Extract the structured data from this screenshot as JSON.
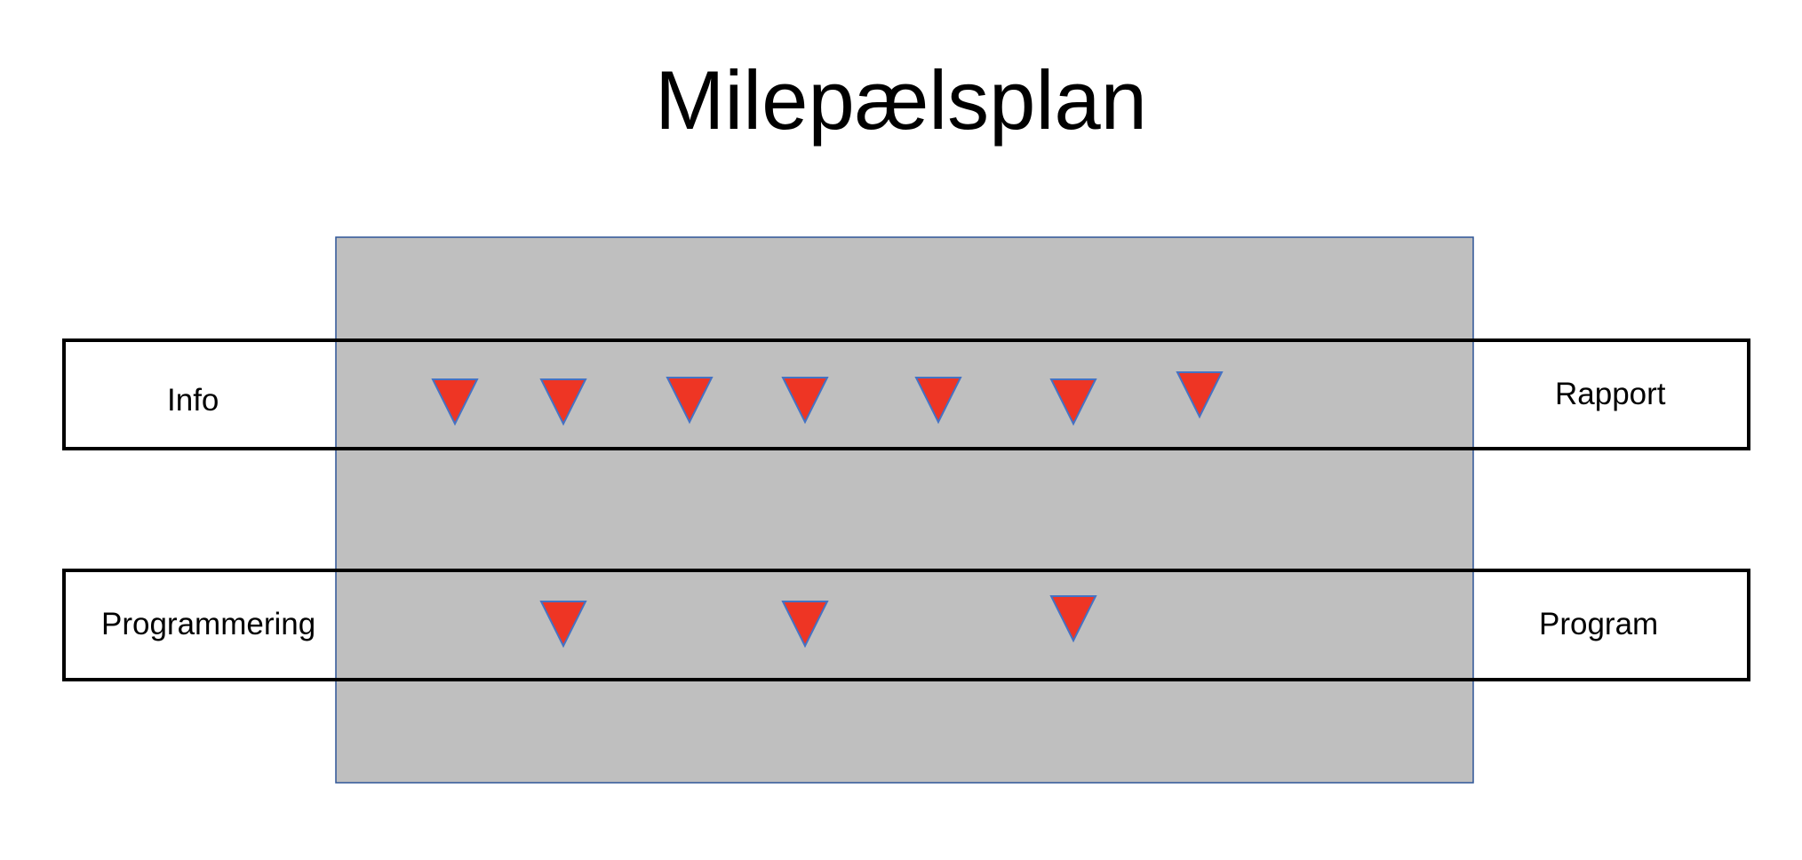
{
  "title": "Milepælsplan",
  "colors": {
    "background": "#ffffff",
    "period_fill": "#bfbfbf",
    "period_border": "#2f5597",
    "lane_border": "#000000",
    "milestone_fill": "#ee3524",
    "milestone_border": "#4472c4"
  },
  "milestone_icon": "down-triangle-milestone",
  "lanes": [
    {
      "id": "info",
      "input_label": "Info",
      "output_label": "Rapport",
      "milestone_count": 7
    },
    {
      "id": "programmering",
      "input_label": "Programmering",
      "output_label": "Program",
      "milestone_count": 3
    }
  ]
}
